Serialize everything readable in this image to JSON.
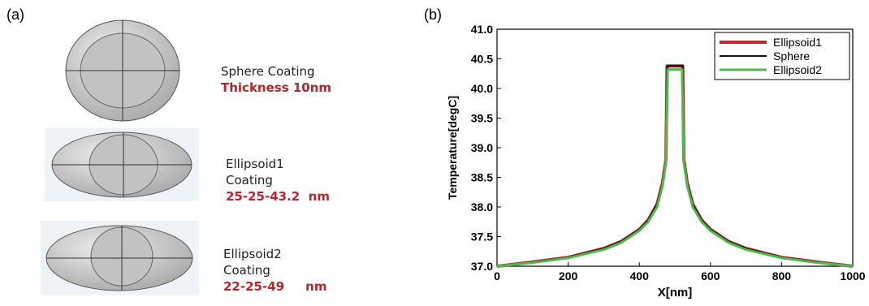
{
  "panel_a": {
    "label": "(a)",
    "items": [
      {
        "name": "Sphere Coating",
        "spec": "Thickness 10nm"
      },
      {
        "name": "Ellipsoid1",
        "name2": "Coating",
        "spec": "25-25-43.2  nm"
      },
      {
        "name": "Ellipsoid2",
        "name2": "Coating",
        "spec": "22-25-49     nm"
      }
    ]
  },
  "panel_b": {
    "label": "(b)"
  },
  "chart_data": {
    "type": "line",
    "xlabel": "X[nm]",
    "ylabel": "Temperature[degC]",
    "xlim": [
      0,
      1000
    ],
    "ylim": [
      37.0,
      41.0
    ],
    "xticks": [
      "0",
      "200",
      "400",
      "600",
      "800",
      "1000"
    ],
    "yticks": [
      "37.0",
      "37.5",
      "38.0",
      "38.5",
      "39.0",
      "39.5",
      "40.0",
      "40.5",
      "41.0"
    ],
    "legend_position": "top-right",
    "grid": false,
    "series": [
      {
        "name": "Ellipsoid1",
        "color": "#c0282d",
        "x": [
          0,
          100,
          200,
          300,
          350,
          400,
          425,
          450,
          465,
          475,
          478,
          522,
          525,
          535,
          550,
          575,
          600,
          650,
          700,
          800,
          900,
          1000
        ],
        "y": [
          37.0,
          37.07,
          37.15,
          37.3,
          37.42,
          37.62,
          37.78,
          38.05,
          38.4,
          38.8,
          40.38,
          40.38,
          38.8,
          38.4,
          38.05,
          37.78,
          37.62,
          37.42,
          37.3,
          37.15,
          37.07,
          37.0
        ]
      },
      {
        "name": "Sphere",
        "color": "#111111",
        "x": [
          0,
          100,
          200,
          300,
          350,
          400,
          425,
          450,
          465,
          475,
          478,
          522,
          525,
          535,
          550,
          575,
          600,
          650,
          700,
          800,
          900,
          1000
        ],
        "y": [
          37.0,
          37.07,
          37.15,
          37.3,
          37.42,
          37.62,
          37.78,
          38.05,
          38.4,
          38.8,
          40.38,
          40.38,
          38.8,
          38.4,
          38.05,
          37.78,
          37.62,
          37.42,
          37.3,
          37.15,
          37.07,
          37.0
        ]
      },
      {
        "name": "Ellipsoid2",
        "color": "#4cbb4c",
        "x": [
          0,
          100,
          200,
          300,
          350,
          400,
          425,
          450,
          465,
          475,
          480,
          520,
          525,
          535,
          550,
          575,
          600,
          650,
          700,
          800,
          900,
          1000
        ],
        "y": [
          37.0,
          37.06,
          37.14,
          37.28,
          37.4,
          37.6,
          37.75,
          38.0,
          38.35,
          38.75,
          40.32,
          40.32,
          38.75,
          38.35,
          38.0,
          37.75,
          37.6,
          37.4,
          37.28,
          37.14,
          37.06,
          37.0
        ]
      }
    ]
  }
}
